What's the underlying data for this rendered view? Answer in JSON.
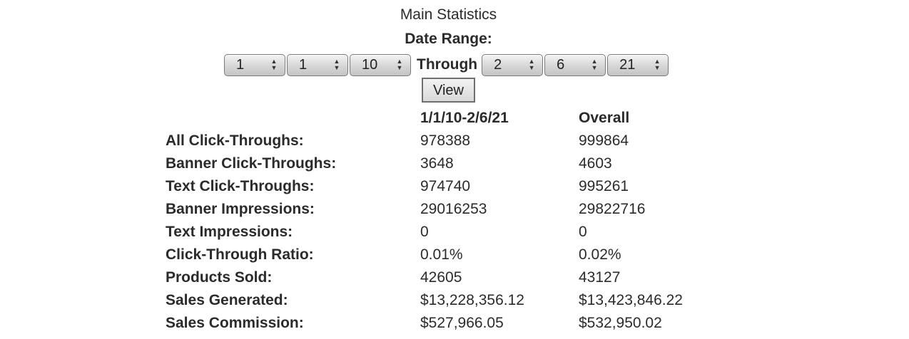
{
  "title": "Main Statistics",
  "date_range_label": "Date Range:",
  "from": {
    "month": "1",
    "day": "1",
    "year": "10"
  },
  "through_label": "Through",
  "to": {
    "month": "2",
    "day": "6",
    "year": "21"
  },
  "view_label": "View",
  "table": {
    "headers": {
      "label": "",
      "range": "1/1/10-2/6/21",
      "overall": "Overall"
    },
    "rows": [
      {
        "label": "All Click-Throughs:",
        "range": "978388",
        "overall": "999864"
      },
      {
        "label": "Banner Click-Throughs:",
        "range": "3648",
        "overall": "4603"
      },
      {
        "label": "Text Click-Throughs:",
        "range": "974740",
        "overall": "995261"
      },
      {
        "label": "Banner Impressions:",
        "range": "29016253",
        "overall": "29822716"
      },
      {
        "label": "Text Impressions:",
        "range": "0",
        "overall": "0"
      },
      {
        "label": "Click-Through Ratio:",
        "range": "0.01%",
        "overall": "0.02%"
      },
      {
        "label": "Products Sold:",
        "range": "42605",
        "overall": "43127"
      },
      {
        "label": "Sales Generated:",
        "range": "$13,228,356.12",
        "overall": "$13,423,846.22"
      },
      {
        "label": "Sales Commission:",
        "range": "$527,966.05",
        "overall": "$532,950.02"
      }
    ]
  }
}
